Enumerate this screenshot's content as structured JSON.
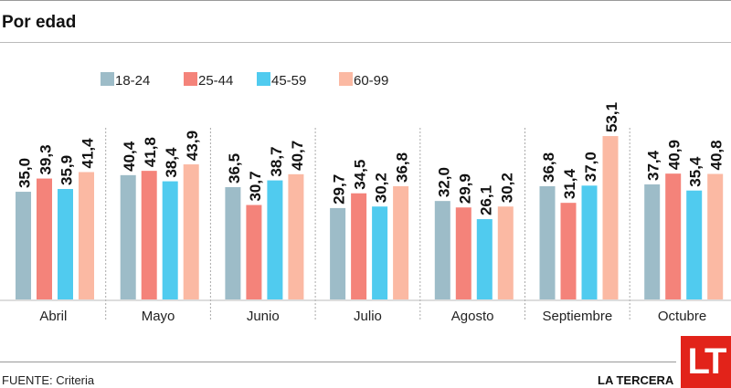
{
  "title": "Por edad",
  "source": "FUENTE: Criteria",
  "brand": "LA TERCERA",
  "logo_text": "LT",
  "chart_data": {
    "type": "bar",
    "title": "Por edad",
    "categories": [
      "Abril",
      "Mayo",
      "Junio",
      "Julio",
      "Agosto",
      "Septiembre",
      "Octubre"
    ],
    "series": [
      {
        "name": "18-24",
        "color": "#9dbcc8",
        "values": [
          35.0,
          40.4,
          36.5,
          29.7,
          32.0,
          36.8,
          37.4
        ]
      },
      {
        "name": "25-44",
        "color": "#f4837a",
        "values": [
          39.3,
          41.8,
          30.7,
          34.5,
          29.9,
          31.4,
          40.9
        ]
      },
      {
        "name": "45-59",
        "color": "#50cbef",
        "values": [
          35.9,
          38.4,
          38.7,
          30.2,
          26.1,
          37.0,
          35.4
        ]
      },
      {
        "name": "60-99",
        "color": "#fbb9a3",
        "values": [
          41.4,
          43.9,
          40.7,
          36.8,
          30.2,
          53.1,
          40.8
        ]
      }
    ],
    "labels": [
      [
        "35,0",
        "40,4",
        "36,5",
        "29,7",
        "32,0",
        "36,8",
        "37,4"
      ],
      [
        "39,3",
        "41,8",
        "30,7",
        "34,5",
        "29,9",
        "31,4",
        "40,9"
      ],
      [
        "35,9",
        "38,4",
        "38,7",
        "30,2",
        "26,1",
        "37,0",
        "35,4"
      ],
      [
        "41,4",
        "43,9",
        "40,7",
        "36,8",
        "30,2",
        "53,1",
        "40,8"
      ]
    ],
    "ylim": [
      0,
      60
    ],
    "legend": "top"
  }
}
